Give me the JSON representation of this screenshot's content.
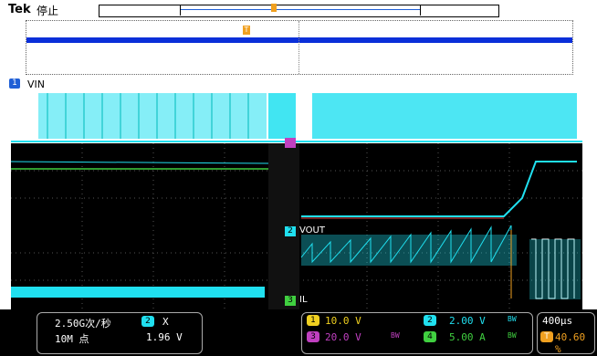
{
  "header": {
    "brand": "Tek",
    "status": "停止"
  },
  "channel_labels": {
    "ch1_number": "1",
    "ch1_name": "VIN",
    "ch2_number": "2",
    "ch2_name": "VOUT",
    "ch3_number": "3",
    "ch3_name": "IL"
  },
  "trigger_marker": "T",
  "readouts": {
    "sample_rate": "2.50G次/秒",
    "record_length": "10M 点",
    "trigger_channel_badge": "2",
    "trigger_symbol": "X",
    "trigger_level": "1.96 V",
    "ch1_badge": "1",
    "ch1_scale": "10.0 V",
    "ch2_badge": "2",
    "ch2_scale": "2.00 V",
    "ch2_bw": "BW",
    "ch3_badge": "3",
    "ch3_scale": "20.0 V",
    "ch3_bw": "BW",
    "ch4_badge": "4",
    "ch4_scale": "5.00 A",
    "ch4_bw": "BW",
    "timebase": "400µs",
    "trigger_position_badge": "T",
    "trigger_position": "40.60 %"
  },
  "colors": {
    "ch1": "#1f5fd6",
    "ch2": "#20e0f0",
    "ch3": "#c040c0",
    "ch4": "#40d040",
    "trigger": "#f0a020"
  }
}
